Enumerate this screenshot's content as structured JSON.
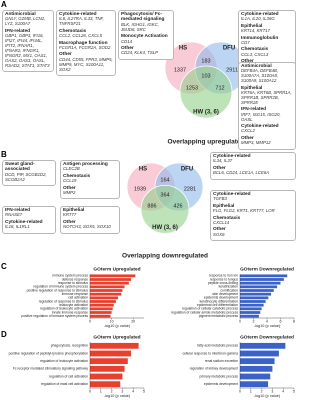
{
  "panel_a": {
    "label": "A",
    "caption": "Overlapping upregulated",
    "venn": {
      "sets": [
        "HS",
        "DFU",
        "HW (3, 6)"
      ],
      "regions": [
        1337,
        2911,
        183,
        103,
        1253,
        712
      ]
    },
    "boxes": [
      {
        "sections": [
          {
            "title": "Antimicrobial",
            "genes": "GNLY, GZMB, LCN2, LYZ, S100A7"
          },
          {
            "title": "IFN-related",
            "genes": "GBP1, GBP3, IFI16, IFI27, IFI44, IFI44L, IFIT2, IFNAR1, IFNAR2, IFNGR1, IFNGR2, MX1, OAS1, OAS2, OAS3, OASL, RSAD2, STAT1, STAT3"
          }
        ]
      },
      {
        "sections": [
          {
            "title": "Cytokine-related",
            "genes": "IL6, IL27RA, IL33, TNF, TNFRSF21"
          },
          {
            "title": "Chemotaxis",
            "genes": "CCL2, CCL26, CXCL5"
          },
          {
            "title": "Macrophage function",
            "genes": "FCGR1A, FCGR2A, SOD2"
          },
          {
            "title": "Other",
            "genes": "CD44, CD55, FPR3, MMP5, MMP9, MYC, S100A11, SOX2"
          }
        ]
      },
      {
        "sections": [
          {
            "title": "Phagocytosis/ Fc-mediated signaling",
            "genes": "BLK, IGHG1, IGKC, JMJD6, SRC"
          },
          {
            "title": "Monocyte Activation",
            "genes": "CD14"
          },
          {
            "title": "Other",
            "genes": "CD24, KLK4, TSLP"
          }
        ]
      },
      {
        "sections": [
          {
            "title": "Cytokine-related",
            "genes": "IL1A, IL20, IL36G"
          },
          {
            "title": "Epithelial",
            "genes": "KRT14, KRT17"
          },
          {
            "title": "Immunoglobulin",
            "genes": "CD7"
          },
          {
            "title": "Chemotaxis",
            "genes": "CCL3, CXCL3"
          },
          {
            "title": "Other",
            "genes": "KLK5, KLK10, MEFV, MMP1, MMP10, S100A8, S100A9"
          }
        ]
      },
      {
        "sections": [
          {
            "title": "Antimicrobial",
            "genes": "DEFB4A, DEFB4B, S100A7A, S100A8, S100A9, S100A12"
          },
          {
            "title": "Epithelial",
            "genes": "KRT6A, KRT6B, SPRR1A, SPRR1B, SPRR2B, SPRR2E"
          },
          {
            "title": "IFN-related",
            "genes": "IRF7, ISG15, ISG20, OASL"
          },
          {
            "title": "Cytokine-related",
            "genes": "CXCL2"
          },
          {
            "title": "Other",
            "genes": "MMP3, MMP12"
          }
        ]
      }
    ]
  },
  "panel_b": {
    "label": "B",
    "caption": "Overlapping downregulated",
    "venn": {
      "sets": [
        "HS",
        "DFU",
        "HW (3, 6)"
      ],
      "regions": [
        1939,
        2281,
        164,
        364,
        886,
        426
      ]
    },
    "boxes": [
      {
        "sections": [
          {
            "title": "Sweat gland-associated",
            "genes": "DCD, PIP, SCGB1D2, SCGB2A2"
          }
        ]
      },
      {
        "sections": [
          {
            "title": "Antigen processing",
            "genes": "CLEC2B"
          },
          {
            "title": "Chemotaxis",
            "genes": "CCL19"
          },
          {
            "title": "Other",
            "genes": "MMP2"
          }
        ]
      },
      {
        "sections": [
          {
            "title": "IFN-related",
            "genes": "RNASE7"
          },
          {
            "title": "Cytokine-related",
            "genes": "IL18, IL1RL1"
          }
        ]
      },
      {
        "sections": [
          {
            "title": "Epithelial",
            "genes": "KRT77"
          },
          {
            "title": "Other",
            "genes": "NOTCH3, SOX5, SOX10"
          }
        ]
      },
      {
        "sections": [
          {
            "title": "Cytokine-related",
            "genes": "IL34, IL37"
          },
          {
            "title": "Other",
            "genes": "BCL6, CD24, LCE1A, LCE6A"
          }
        ]
      },
      {
        "sections": [
          {
            "title": "Cytokine-related",
            "genes": "TGFB3"
          },
          {
            "title": "Epithelial",
            "genes": "FLG, FLG2, KRT1, KRT77, LOR"
          },
          {
            "title": "Chemotaxis",
            "genes": "CXCL14"
          },
          {
            "title": "Other",
            "genes": "SOX6"
          }
        ]
      }
    ]
  },
  "panel_labels": [
    "C",
    "D"
  ],
  "chart_data": [
    {
      "type": "bar",
      "orientation": "horizontal",
      "title": "GOterm Upregulated",
      "x_label": "-log10 (p value)",
      "color": "#e8402f",
      "categories": [
        "immune system process",
        "defense response",
        "response to stimulus",
        "regulation of immune system process",
        "positive regulation of response to stimulus",
        "immune response",
        "cell activation",
        "regulation of response to stimulus",
        "leukocyte activation",
        "regulation of leukocyte activation",
        "innate immune response",
        "positive regulation of immune system process"
      ],
      "values": [
        21,
        19,
        18,
        16,
        15,
        14.5,
        13,
        12,
        11,
        10.5,
        10,
        9.5
      ],
      "xlim": [
        0,
        25
      ],
      "xticks": [
        0,
        10,
        20
      ]
    },
    {
      "type": "bar",
      "orientation": "horizontal",
      "title": "GOterm Downregulated",
      "x_label": "-log10 (p value)",
      "color": "#3a62c8",
      "categories": [
        "response to iron ion",
        "response to fungus",
        "peptide cross-linking",
        "keratinization",
        "cornification",
        "skin development",
        "epidermis development",
        "keratinocyte differentiation",
        "epidermal cell differentiation",
        "regulation of cellular catabolic process",
        "regulation of cellular amide metabolic process",
        "pigment metabolic process"
      ],
      "values": [
        7,
        6.5,
        6,
        5.5,
        5,
        4.6,
        4.2,
        3.8,
        3.5,
        3.2,
        3,
        2.8
      ],
      "xlim": [
        0,
        8
      ],
      "xticks": [
        0,
        2,
        4,
        6,
        8
      ]
    },
    {
      "type": "bar",
      "orientation": "horizontal",
      "title": "GOterm Upregulated",
      "x_label": "-log10 (p value)",
      "color": "#e8402f",
      "categories": [
        "phagocytosis, recognition",
        "positive regulation of peptidyl-tyrosine phosphorylation",
        "regulation of leukocyte activation",
        "Fc receptor mediated stimulatory signaling pathway",
        "regulation of cell activation",
        "regulation of mast cell activation"
      ],
      "values": [
        4.5,
        3.8,
        3.5,
        3.2,
        3,
        2.8
      ],
      "xlim": [
        0,
        5
      ],
      "xticks": [
        0,
        1,
        2,
        3,
        4,
        5
      ]
    },
    {
      "type": "bar",
      "orientation": "horizontal",
      "title": "GOterm Downregulated",
      "x_label": "-log10 (p value)",
      "color": "#3a62c8",
      "categories": [
        "fatty acid metabolic process",
        "cellular response to interferon-gamma",
        "renal sodium excretion",
        "regulation of kidney development",
        "primary metabolic process",
        "epidermis development"
      ],
      "values": [
        4.2,
        3.6,
        3.2,
        3,
        2.8,
        2.6
      ],
      "xlim": [
        0,
        5
      ],
      "xticks": [
        0,
        1,
        2,
        3,
        4,
        5
      ]
    }
  ]
}
